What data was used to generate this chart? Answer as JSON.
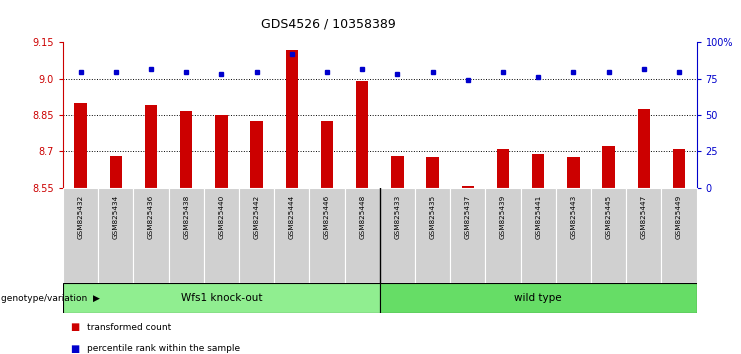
{
  "title": "GDS4526 / 10358389",
  "samples": [
    "GSM825432",
    "GSM825434",
    "GSM825436",
    "GSM825438",
    "GSM825440",
    "GSM825442",
    "GSM825444",
    "GSM825446",
    "GSM825448",
    "GSM825433",
    "GSM825435",
    "GSM825437",
    "GSM825439",
    "GSM825441",
    "GSM825443",
    "GSM825445",
    "GSM825447",
    "GSM825449"
  ],
  "transformed_counts": [
    8.9,
    8.68,
    8.89,
    8.865,
    8.85,
    8.825,
    9.12,
    8.825,
    8.99,
    8.68,
    8.675,
    8.555,
    8.71,
    8.69,
    8.675,
    8.72,
    8.875,
    8.71
  ],
  "percentile_ranks": [
    80,
    80,
    82,
    80,
    78,
    80,
    92,
    80,
    82,
    78,
    80,
    74,
    80,
    76,
    80,
    80,
    82,
    80
  ],
  "groups": [
    "Wfs1 knock-out",
    "Wfs1 knock-out",
    "Wfs1 knock-out",
    "Wfs1 knock-out",
    "Wfs1 knock-out",
    "Wfs1 knock-out",
    "Wfs1 knock-out",
    "Wfs1 knock-out",
    "Wfs1 knock-out",
    "wild type",
    "wild type",
    "wild type",
    "wild type",
    "wild type",
    "wild type",
    "wild type",
    "wild type",
    "wild type"
  ],
  "ko_color": "#90EE90",
  "wt_color": "#66DD66",
  "bar_color": "#CC0000",
  "dot_color": "#0000CC",
  "ylim_left": [
    8.55,
    9.15
  ],
  "ylim_right": [
    0,
    100
  ],
  "yticks_left": [
    8.55,
    8.7,
    8.85,
    9.0,
    9.15
  ],
  "yticks_right": [
    0,
    25,
    50,
    75,
    100
  ],
  "ytick_labels_right": [
    "0",
    "25",
    "50",
    "75",
    "100%"
  ],
  "hlines": [
    9.0,
    8.85,
    8.7
  ],
  "ko_count": 9,
  "wt_count": 9,
  "legend_items": [
    "transformed count",
    "percentile rank within the sample"
  ],
  "background_color": "#ffffff",
  "tick_bg_color": "#d0d0d0"
}
